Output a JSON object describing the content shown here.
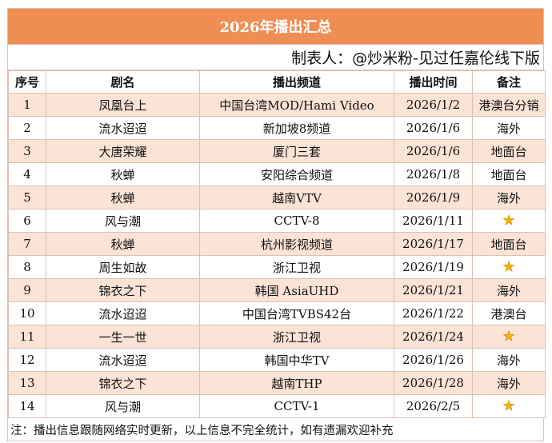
{
  "title": "2026年播出汇总",
  "credit": "制表人：@炒米粉-见过任嘉伦线下版",
  "columns": {
    "no": "序号",
    "name": "剧名",
    "channel": "播出频道",
    "date": "播出时间",
    "note": "备注"
  },
  "rows": [
    {
      "no": "1",
      "name": "凤凰台上",
      "channel": "中国台湾MOD/Hami Video",
      "date": "2026/1/2",
      "note": "港澳台分销",
      "star": false
    },
    {
      "no": "2",
      "name": "流水迢迢",
      "channel": "新加坡8频道",
      "date": "2026/1/6",
      "note": "海外",
      "star": false
    },
    {
      "no": "3",
      "name": "大唐荣耀",
      "channel": "厦门三套",
      "date": "2026/1/6",
      "note": "地面台",
      "star": false
    },
    {
      "no": "4",
      "name": "秋蝉",
      "channel": "安阳综合频道",
      "date": "2026/1/8",
      "note": "地面台",
      "star": false
    },
    {
      "no": "5",
      "name": "秋蝉",
      "channel": "越南VTV",
      "date": "2026/1/9",
      "note": "海外",
      "star": false
    },
    {
      "no": "6",
      "name": "风与潮",
      "channel": "CCTV-8",
      "date": "2026/1/11",
      "note": "",
      "star": true
    },
    {
      "no": "7",
      "name": "秋蝉",
      "channel": "杭州影视频道",
      "date": "2026/1/17",
      "note": "地面台",
      "star": false
    },
    {
      "no": "8",
      "name": "周生如故",
      "channel": "浙江卫视",
      "date": "2026/1/19",
      "note": "",
      "star": true
    },
    {
      "no": "9",
      "name": "锦衣之下",
      "channel": "韩国 AsiaUHD",
      "date": "2026/1/21",
      "note": "海外",
      "star": false
    },
    {
      "no": "10",
      "name": "流水迢迢",
      "channel": "中国台湾TVBS42台",
      "date": "2026/1/22",
      "note": "港澳台",
      "star": false
    },
    {
      "no": "11",
      "name": "一生一世",
      "channel": "浙江卫视",
      "date": "2026/1/24",
      "note": "",
      "star": true
    },
    {
      "no": "12",
      "name": "流水迢迢",
      "channel": "韩国中华TV",
      "date": "2026/1/26",
      "note": "海外",
      "star": false
    },
    {
      "no": "13",
      "name": "锦衣之下",
      "channel": "越南THP",
      "date": "2026/1/28",
      "note": "海外",
      "star": false
    },
    {
      "no": "14",
      "name": "风与潮",
      "channel": "CCTV-1",
      "date": "2026/2/5",
      "note": "",
      "star": true
    }
  ],
  "footer_note": "注：播出信息跟随网络实时更新，以上信息不完全统计，如有遗漏欢迎补充",
  "colors": {
    "title_bg": "#ee8e53",
    "row_shade": "#fbe3d5",
    "star": "#f4b400"
  },
  "icons": {
    "star": "star-icon"
  }
}
